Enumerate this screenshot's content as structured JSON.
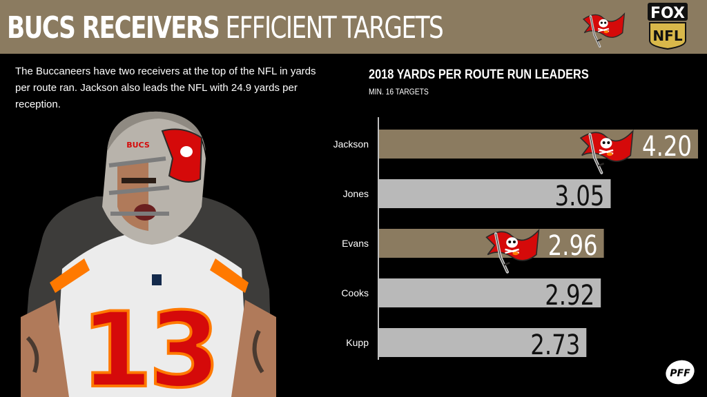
{
  "header": {
    "title_bold": "BUCS RECEIVERS",
    "title_light": "EFFICIENT TARGETS"
  },
  "network": {
    "line1": "FOX",
    "line2": "NFL"
  },
  "description": "The Buccaneers have two receivers at the top of the NFL in yards per route ran. Jackson also leads the NFL with 24.9 yards per reception.",
  "player": {
    "jersey_number": "13",
    "helmet_text": "BUCS"
  },
  "pff_logo": "PFF",
  "colors": {
    "background": "#000000",
    "header": "#8b7b60",
    "bucs_bar": "#8b7b60",
    "other_bar": "#b9b9b9",
    "bucs_red": "#d50a0a",
    "pewter": "#3d3c3a"
  },
  "icons": {
    "team_flag": "bucs-flag-icon",
    "network": "fox-nfl-logo-icon",
    "pff": "pff-logo-icon"
  },
  "chart_data": {
    "type": "bar",
    "orientation": "horizontal",
    "title": "2018 YARDS PER ROUTE RUN LEADERS",
    "subtitle": "MIN. 16 TARGETS",
    "categories": [
      "Jackson",
      "Jones",
      "Evans",
      "Cooks",
      "Kupp"
    ],
    "values": [
      4.2,
      3.05,
      2.96,
      2.92,
      2.73
    ],
    "value_labels": [
      "4.20",
      "3.05",
      "2.96",
      "2.92",
      "2.73"
    ],
    "highlight": [
      true,
      false,
      true,
      false,
      false
    ],
    "xlim": [
      0,
      4.2
    ],
    "grid": false,
    "legend": "none"
  }
}
